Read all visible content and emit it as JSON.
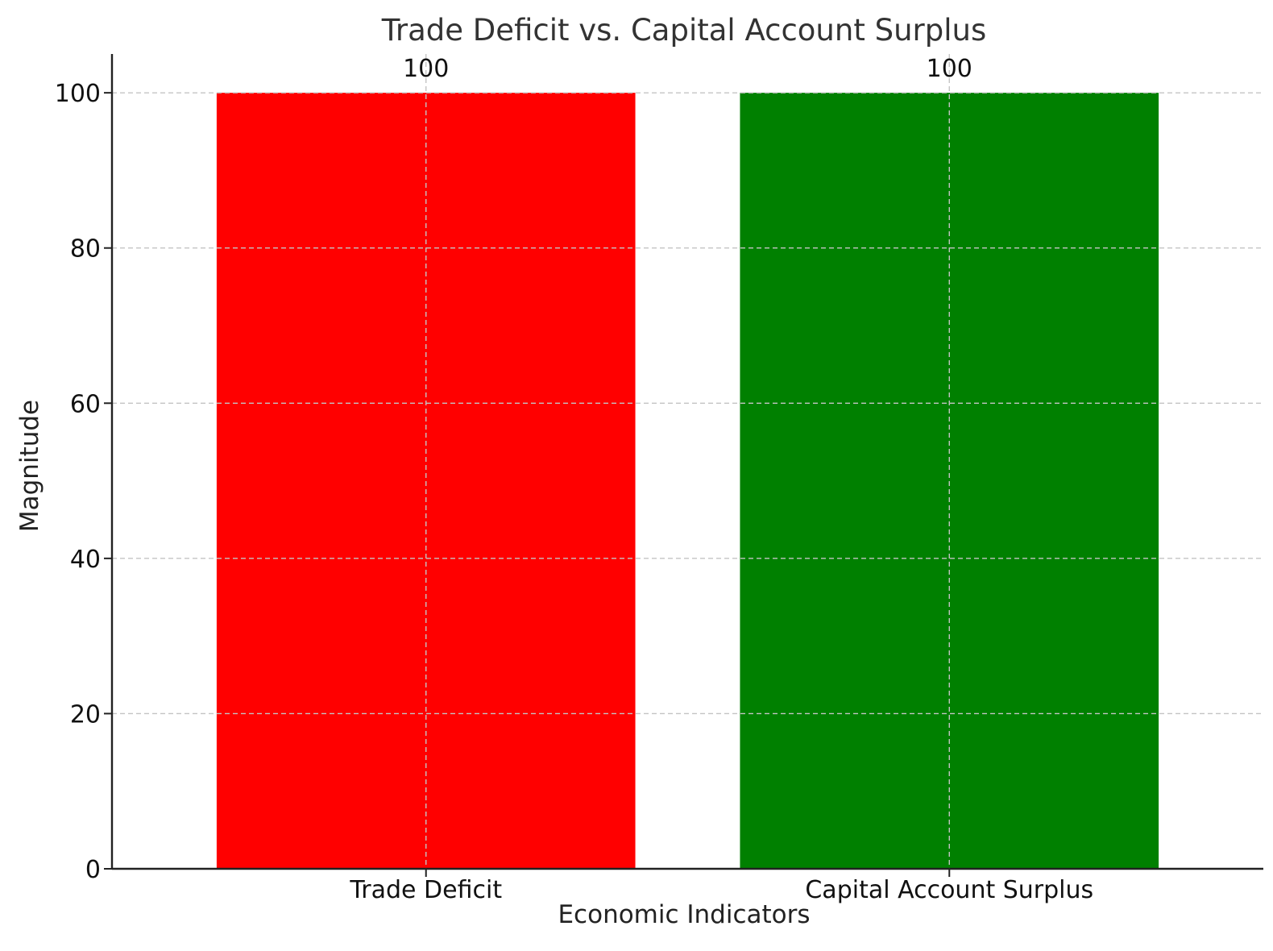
{
  "chart_data": {
    "type": "bar",
    "title": "Trade Deficit vs. Capital Account Surplus",
    "xlabel": "Economic Indicators",
    "ylabel": "Magnitude",
    "categories": [
      "Trade Deficit",
      "Capital Account Surplus"
    ],
    "values": [
      100,
      100
    ],
    "data_labels": [
      "100",
      "100"
    ],
    "colors": [
      "#ff0000",
      "#008000"
    ],
    "ylim": [
      0,
      105
    ],
    "yticks": [
      0,
      20,
      40,
      60,
      80,
      100
    ],
    "ytick_labels": [
      "0",
      "20",
      "40",
      "60",
      "80",
      "100"
    ],
    "grid": true,
    "legend": "none"
  }
}
